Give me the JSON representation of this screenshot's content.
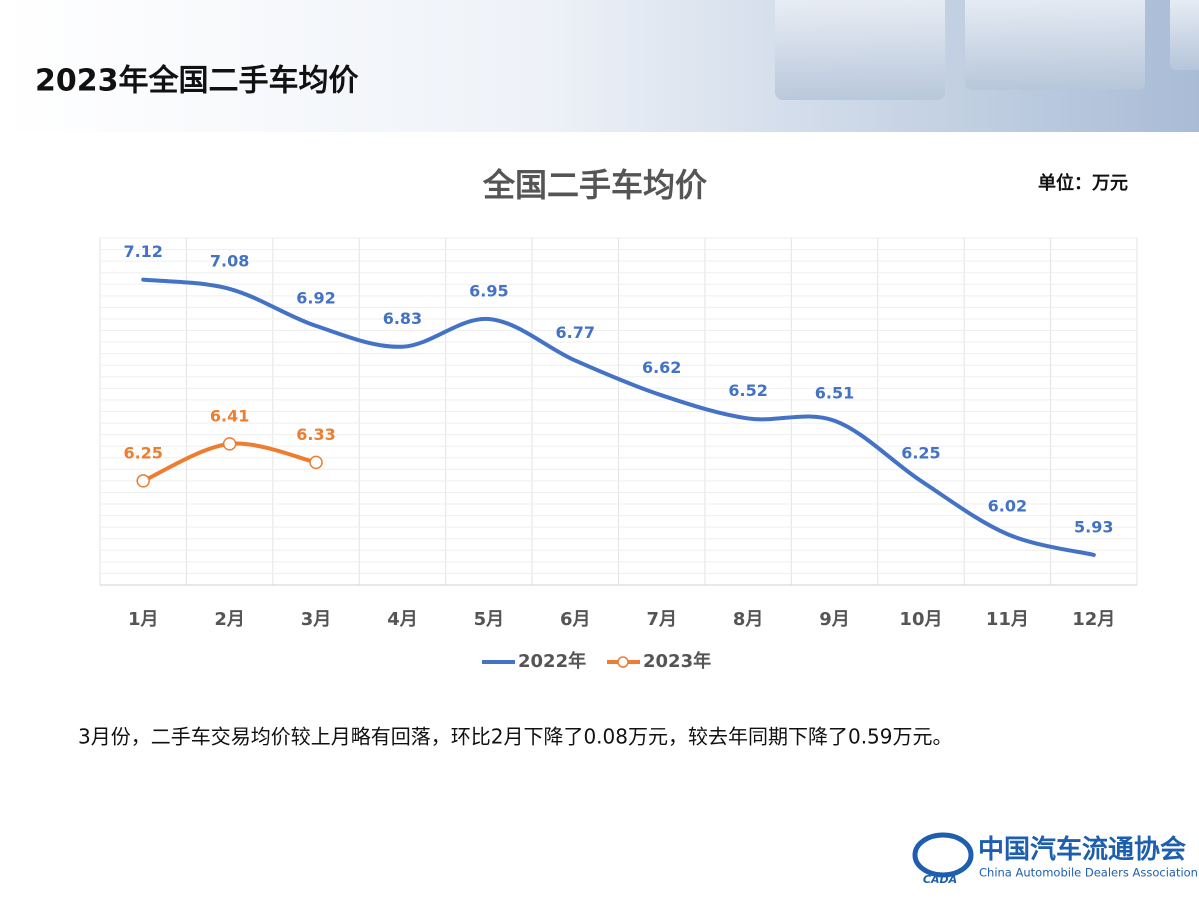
{
  "header": {
    "title": "2023年全国二手车均价"
  },
  "chart_data": {
    "type": "line",
    "title": "全国二手车均价",
    "unit": "单位：万元",
    "categories": [
      "1月",
      "2月",
      "3月",
      "4月",
      "5月",
      "6月",
      "7月",
      "8月",
      "9月",
      "10月",
      "11月",
      "12月"
    ],
    "series": [
      {
        "name": "2022年",
        "color": "#4472c4",
        "marker": false,
        "values": [
          7.12,
          7.08,
          6.92,
          6.83,
          6.95,
          6.77,
          6.62,
          6.52,
          6.51,
          6.25,
          6.02,
          5.93
        ]
      },
      {
        "name": "2023年",
        "color": "#ed7d31",
        "marker": true,
        "values": [
          6.25,
          6.41,
          6.33,
          null,
          null,
          null,
          null,
          null,
          null,
          null,
          null,
          null
        ]
      }
    ],
    "ylim": [
      5.8,
      7.3
    ],
    "grid": true,
    "legend": "bottom"
  },
  "note": "3月份，二手车交易均价较上月略有回落，环比2月下降了0.08万元，较去年同期下降了0.59万元。",
  "logo": {
    "cn": "中国汽车流通协会",
    "en": "China Automobile Dealers Association",
    "abbr": "CADA"
  }
}
